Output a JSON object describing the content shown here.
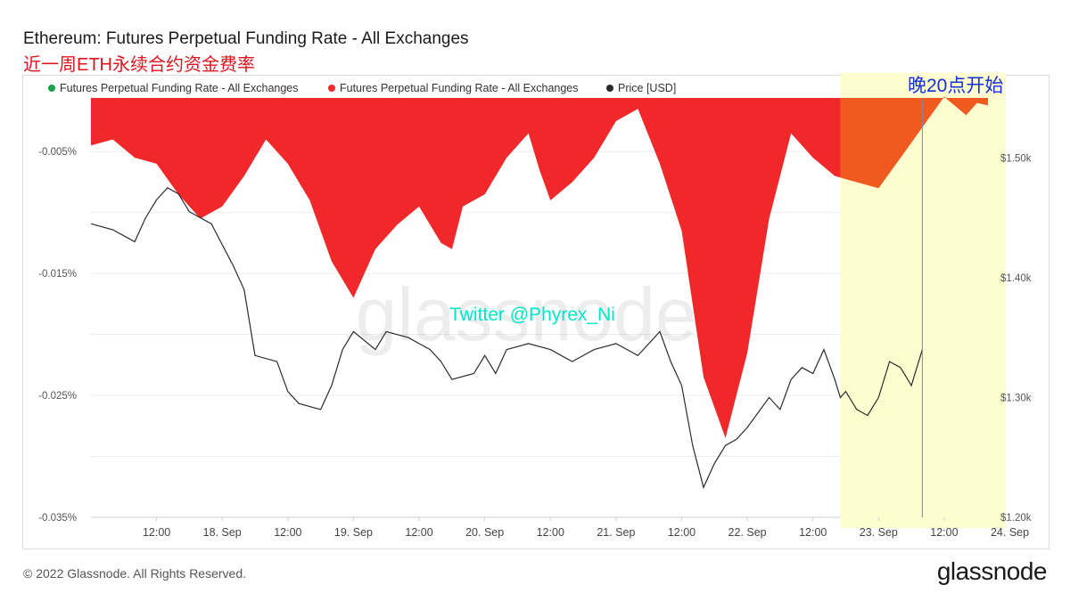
{
  "title": "Ethereum: Futures Perpetual Funding Rate - All Exchanges",
  "subtitle": "近一周ETH永续合约资金费率",
  "annotation": "晚20点开始",
  "twitter": "Twitter @Phyrex_Ni",
  "watermark": "glassnode",
  "footer": "© 2022 Glassnode. All Rights Reserved.",
  "logo": "glassnode",
  "colors": {
    "negative": "#f0282a",
    "positive": "#16a34a",
    "highlight": "#fefdcf",
    "price": "#2b2b2b",
    "twitter": "#00e6c8"
  },
  "chart_data": {
    "type": "area",
    "legend": [
      {
        "label": "Futures Perpetual Funding Rate - All Exchanges",
        "color": "#16a34a"
      },
      {
        "label": "Futures Perpetual Funding Rate - All Exchanges",
        "color": "#f0282a"
      },
      {
        "label": "Price [USD]",
        "color": "#2b2b2b"
      }
    ],
    "x_ticks": [
      "12:00",
      "18. Sep",
      "12:00",
      "19. Sep",
      "12:00",
      "20. Sep",
      "12:00",
      "21. Sep",
      "12:00",
      "22. Sep",
      "12:00",
      "23. Sep",
      "12:00",
      "24. Sep"
    ],
    "y_left": {
      "ticks": [
        "-0.005%",
        "-0.015%",
        "-0.025%",
        "-0.035%"
      ],
      "values": [
        -0.005,
        -0.015,
        -0.025,
        -0.035
      ],
      "range": [
        -0.035,
        -0.0006
      ]
    },
    "y_right": {
      "ticks": [
        "$1.50k",
        "$1.40k",
        "$1.30k",
        "$1.20k"
      ],
      "values": [
        1500,
        1400,
        1300,
        1200
      ],
      "range": [
        1200,
        1550
      ]
    },
    "x_range": [
      0,
      164
    ],
    "highlight": {
      "start": 137,
      "end": 164
    },
    "series": [
      {
        "name": "Futures Perpetual Funding Rate - All Exchanges",
        "axis": "left",
        "x": [
          0,
          4,
          8,
          12,
          16,
          20,
          24,
          28,
          32,
          36,
          38,
          40,
          44,
          48,
          52,
          56,
          60,
          64,
          66,
          68,
          72,
          76,
          80,
          82,
          84,
          88,
          92,
          96,
          100,
          104,
          108,
          112,
          116,
          120,
          124,
          128,
          132,
          136,
          140,
          144,
          148,
          152,
          156,
          160,
          162,
          164
        ],
        "values": [
          -0.0045,
          -0.004,
          -0.0055,
          -0.006,
          -0.0085,
          -0.0105,
          -0.0095,
          -0.007,
          -0.004,
          -0.006,
          -0.0075,
          -0.009,
          -0.014,
          -0.017,
          -0.013,
          -0.011,
          -0.0095,
          -0.0125,
          -0.013,
          -0.0095,
          -0.0085,
          -0.0055,
          -0.0035,
          -0.0065,
          -0.009,
          -0.0075,
          -0.0055,
          -0.0025,
          -0.0015,
          -0.006,
          -0.0115,
          -0.0235,
          -0.0285,
          -0.0215,
          -0.0105,
          -0.0035,
          -0.0055,
          -0.007,
          -0.0075,
          -0.008,
          -0.0055,
          -0.003,
          -0.0005,
          -0.002,
          -0.001,
          -0.0012
        ]
      },
      {
        "name": "Price [USD]",
        "axis": "right",
        "x": [
          0,
          4,
          8,
          10,
          12,
          14,
          16,
          18,
          22,
          26,
          28,
          30,
          34,
          36,
          38,
          42,
          44,
          46,
          48,
          52,
          54,
          58,
          60,
          62,
          64,
          66,
          70,
          72,
          74,
          76,
          80,
          84,
          88,
          92,
          96,
          100,
          104,
          106,
          108,
          110,
          112,
          114,
          116,
          118,
          120,
          124,
          126,
          128,
          130,
          132,
          134,
          136,
          137,
          138,
          140,
          142,
          144,
          146,
          148,
          150,
          152
        ],
        "values": [
          1445,
          1440,
          1430,
          1450,
          1465,
          1475,
          1470,
          1455,
          1445,
          1410,
          1390,
          1335,
          1330,
          1305,
          1295,
          1290,
          1310,
          1340,
          1355,
          1340,
          1355,
          1350,
          1345,
          1340,
          1330,
          1315,
          1320,
          1335,
          1320,
          1340,
          1345,
          1340,
          1330,
          1340,
          1345,
          1335,
          1355,
          1330,
          1310,
          1260,
          1225,
          1245,
          1260,
          1265,
          1275,
          1300,
          1290,
          1315,
          1325,
          1320,
          1340,
          1315,
          1300,
          1305,
          1290,
          1285,
          1300,
          1330,
          1325,
          1310,
          1340
        ]
      }
    ]
  }
}
